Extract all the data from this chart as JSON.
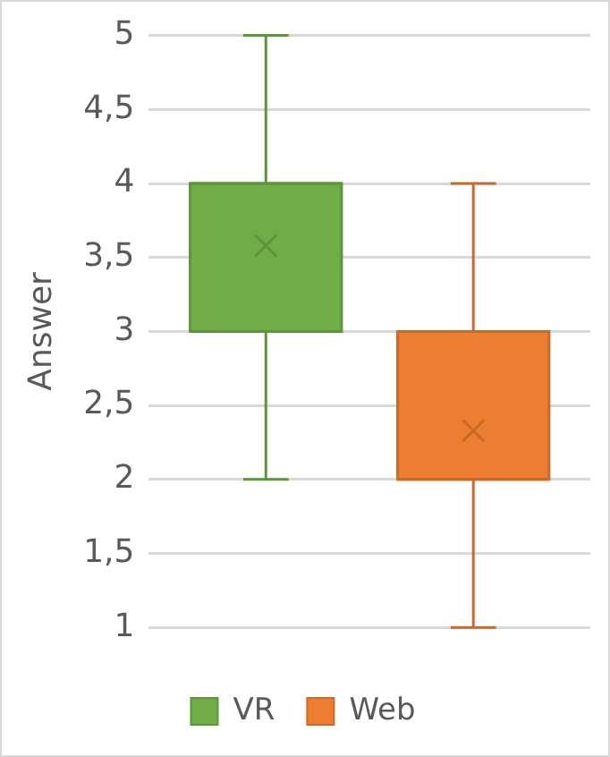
{
  "chart_data": {
    "type": "box",
    "ylabel": "Answer",
    "categories": [
      null
    ],
    "series": [
      {
        "name": "VR",
        "color": "#70ad47",
        "boxes": [
          {
            "low": 2,
            "q1": 3,
            "median": 4,
            "q3": 4,
            "high": 5,
            "mean": 3.58
          }
        ]
      },
      {
        "name": "Web",
        "color": "#ed7d31",
        "boxes": [
          {
            "low": 1,
            "q1": 2,
            "median": 2,
            "q3": 3,
            "high": 4,
            "mean": 2.33
          }
        ]
      }
    ],
    "ylim": [
      1,
      5
    ],
    "yticks": [
      1,
      {
        "value": 1.5,
        "label": "1,5"
      },
      2,
      {
        "value": 2.5,
        "label": "2,5"
      },
      3,
      {
        "value": 3.5,
        "label": "3,5"
      },
      4,
      {
        "value": 4.5,
        "label": "4,5"
      },
      5
    ],
    "grid": "y",
    "legend": "bottom"
  }
}
